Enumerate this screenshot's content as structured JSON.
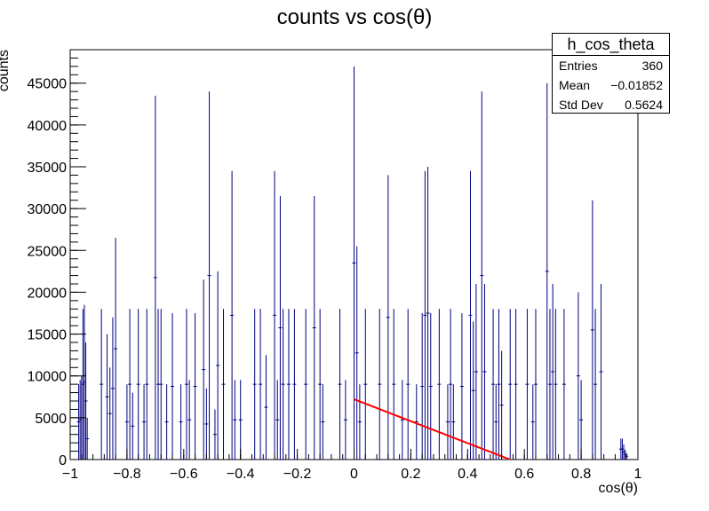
{
  "chart_data": {
    "type": "bar",
    "title": "counts vs cos(θ)",
    "xlabel": "cos(θ)",
    "ylabel": "counts",
    "xlim": [
      -1,
      1
    ],
    "ylim": [
      0,
      49000
    ],
    "xticks": [
      -1,
      -0.8,
      -0.6,
      -0.4,
      -0.2,
      0,
      0.2,
      0.4,
      0.6,
      0.8,
      1
    ],
    "xtick_labels": [
      "−1",
      "−0.8",
      "−0.6",
      "−0.4",
      "−0.2",
      "0",
      "0.2",
      "0.4",
      "0.6",
      "0.8",
      "1"
    ],
    "yticks": [
      0,
      5000,
      10000,
      15000,
      20000,
      25000,
      30000,
      35000,
      40000,
      45000
    ],
    "ytick_labels": [
      "0",
      "5000",
      "10000",
      "15000",
      "20000",
      "25000",
      "30000",
      "35000",
      "40000",
      "45000"
    ],
    "grid": false,
    "histogram_color": "#000080",
    "fit_color": "#ff0000",
    "series": [
      {
        "type": "histogram",
        "x": [
          -0.97,
          -0.965,
          -0.96,
          -0.955,
          -0.95,
          -0.945,
          -0.94,
          -0.89,
          -0.87,
          -0.86,
          -0.85,
          -0.84,
          -0.8,
          -0.79,
          -0.78,
          -0.76,
          -0.74,
          -0.73,
          -0.7,
          -0.69,
          -0.68,
          -0.66,
          -0.64,
          -0.61,
          -0.59,
          -0.58,
          -0.56,
          -0.53,
          -0.52,
          -0.51,
          -0.49,
          -0.48,
          -0.46,
          -0.43,
          -0.42,
          -0.4,
          -0.35,
          -0.33,
          -0.31,
          -0.28,
          -0.27,
          -0.26,
          -0.25,
          -0.23,
          -0.21,
          -0.17,
          -0.14,
          -0.12,
          -0.11,
          -0.05,
          -0.03,
          0.0,
          0.01,
          0.02,
          0.04,
          0.09,
          0.12,
          0.14,
          0.17,
          0.19,
          0.22,
          0.24,
          0.25,
          0.26,
          0.27,
          0.3,
          0.33,
          0.34,
          0.35,
          0.38,
          0.41,
          0.42,
          0.43,
          0.45,
          0.46,
          0.49,
          0.5,
          0.51,
          0.52,
          0.55,
          0.57,
          0.61,
          0.63,
          0.64,
          0.68,
          0.69,
          0.7,
          0.71,
          0.74,
          0.79,
          0.8,
          0.84,
          0.85,
          0.87,
          0.94,
          0.945,
          0.95,
          0.955,
          0.96
        ],
        "values": [
          9000,
          9500,
          10000,
          18000,
          18500,
          14000,
          5000,
          18000,
          15000,
          11000,
          17000,
          26500,
          9000,
          18000,
          8000,
          18000,
          9000,
          18000,
          43500,
          18000,
          18000,
          9000,
          17500,
          9000,
          18000,
          9500,
          17500,
          21500,
          8500,
          44000,
          6000,
          22500,
          18000,
          34500,
          9500,
          9500,
          18000,
          18000,
          12500,
          34500,
          9500,
          31500,
          18000,
          18000,
          18000,
          18000,
          31500,
          18000,
          9000,
          18000,
          9500,
          47000,
          25500,
          9000,
          18000,
          18000,
          34000,
          18000,
          9500,
          18000,
          9000,
          17500,
          34500,
          35000,
          17500,
          18000,
          9000,
          18000,
          9000,
          17500,
          34500,
          16500,
          21000,
          44000,
          21000,
          18000,
          9000,
          18000,
          13000,
          18000,
          18000,
          18000,
          9000,
          18000,
          45000,
          18000,
          21000,
          18000,
          18000,
          20000,
          9500,
          31000,
          18000,
          21000,
          2500,
          2500,
          1800,
          1200,
          800
        ]
      },
      {
        "type": "line",
        "x": [
          0.0,
          0.55
        ],
        "values": [
          7200,
          0
        ]
      }
    ]
  },
  "stats_box": {
    "title": "h_cos_theta",
    "rows": [
      {
        "label": "Entries",
        "value": "360"
      },
      {
        "label": "Mean",
        "value": "−0.01852"
      },
      {
        "label": "Std Dev",
        "value": "0.5624"
      }
    ]
  }
}
